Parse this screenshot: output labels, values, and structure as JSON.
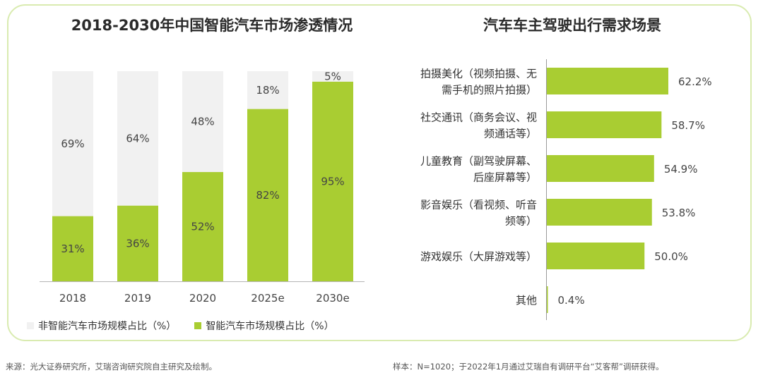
{
  "colors": {
    "green": "#a9cd32",
    "grey": "#f1f1f1",
    "frame": "#d9ebb0",
    "axis": "#b5b5b5"
  },
  "chart_data": [
    {
      "type": "bar",
      "stacked": true,
      "title": "2018-2030年中国智能汽车市场渗透情况",
      "categories": [
        "2018",
        "2019",
        "2020",
        "2025e",
        "2030e"
      ],
      "series": [
        {
          "name": "智能汽车市场规模占比（%）",
          "values": [
            31,
            36,
            52,
            82,
            95
          ],
          "labels": [
            "31%",
            "36%",
            "52%",
            "82%",
            "95%"
          ]
        },
        {
          "name": "非智能汽车市场规模占比（%）",
          "values": [
            69,
            64,
            48,
            18,
            5
          ],
          "labels": [
            "69%",
            "64%",
            "48%",
            "18%",
            "5%"
          ]
        }
      ],
      "ylim": [
        0,
        100
      ],
      "legend": "bottom"
    },
    {
      "type": "bar",
      "orientation": "horizontal",
      "title": "汽车车主驾驶出行需求场景",
      "categories": [
        [
          "拍摄美化（视频拍摄、无",
          "需手机的照片拍摄）"
        ],
        [
          "社交通讯（商务会议、视",
          "频通话等）"
        ],
        [
          "儿童教育（副驾驶屏幕、",
          "后座屏幕等）"
        ],
        [
          "影音娱乐（看视频、听音",
          "频等）"
        ],
        [
          "游戏娱乐（大屏游戏等）"
        ],
        [
          "其他"
        ]
      ],
      "values": [
        62.2,
        58.7,
        54.9,
        53.8,
        50.0,
        0.4
      ],
      "value_labels": [
        "62.2%",
        "58.7%",
        "54.9%",
        "53.8%",
        "50.0%",
        "0.4%"
      ],
      "xlim": [
        0,
        70
      ]
    }
  ],
  "footer": {
    "source": "来源：光大证券研究所，艾瑞咨询研究院自主研究及绘制。",
    "sample": "样本：N=1020；于2022年1月通过艾瑞自有调研平台“艾客帮”调研获得。"
  }
}
